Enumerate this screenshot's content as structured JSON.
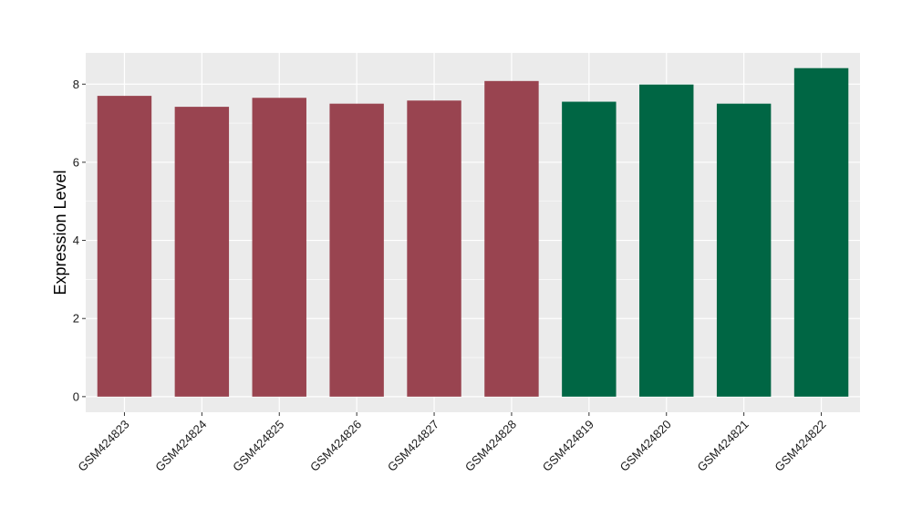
{
  "chart_data": {
    "type": "bar",
    "ylabel": "Expression Level",
    "xlabel": "",
    "categories": [
      "GSM424823",
      "GSM424824",
      "GSM424825",
      "GSM424826",
      "GSM424827",
      "GSM424828",
      "GSM424819",
      "GSM424820",
      "GSM424821",
      "GSM424822"
    ],
    "values": [
      7.7,
      7.42,
      7.65,
      7.5,
      7.58,
      8.08,
      7.55,
      7.99,
      7.5,
      8.41
    ],
    "bar_colors": [
      "#994450",
      "#994450",
      "#994450",
      "#994450",
      "#994450",
      "#994450",
      "#006644",
      "#006644",
      "#006644",
      "#006644"
    ],
    "ylim": [
      -0.4,
      8.8
    ],
    "yticks": [
      0,
      2,
      4,
      6,
      8
    ],
    "grid": true,
    "panel_background": "#ebebeb",
    "grid_color": "#ffffff"
  }
}
